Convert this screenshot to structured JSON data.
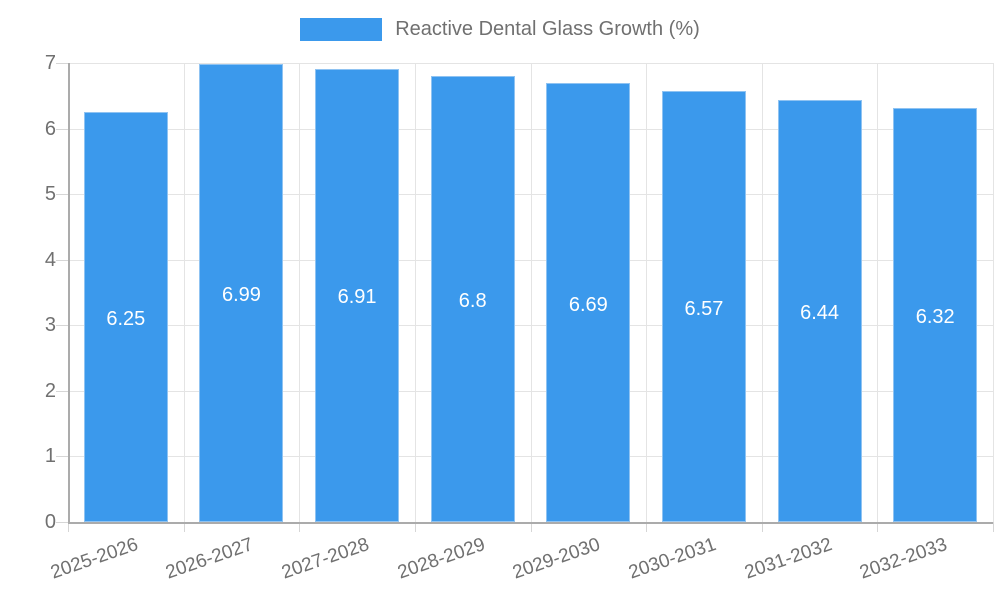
{
  "legend": {
    "label": "Reactive Dental Glass Growth (%)"
  },
  "colors": {
    "bar": "#3b99ec",
    "bar_border": "#8fc3f2",
    "grid": "#e4e4e4",
    "axis": "#ababab",
    "tick": "#d6d6d6",
    "text": "#707070",
    "bar_label": "#ffffff",
    "background": "#ffffff"
  },
  "chart_data": {
    "type": "bar",
    "title": "Reactive Dental Glass Growth (%)",
    "categories": [
      "2025-2026",
      "2026-2027",
      "2027-2028",
      "2028-2029",
      "2029-2030",
      "2030-2031",
      "2031-2032",
      "2032-2033"
    ],
    "values": [
      6.25,
      6.99,
      6.91,
      6.8,
      6.69,
      6.57,
      6.44,
      6.32
    ],
    "value_labels": [
      "6.25",
      "6.99",
      "6.91",
      "6.8",
      "6.69",
      "6.57",
      "6.44",
      "6.32"
    ],
    "ytick_labels": [
      "0",
      "1",
      "2",
      "3",
      "4",
      "5",
      "6",
      "7"
    ],
    "xlabel": "",
    "ylabel": "",
    "ylim": [
      0,
      7
    ],
    "grid": true,
    "legend_position": "top"
  }
}
